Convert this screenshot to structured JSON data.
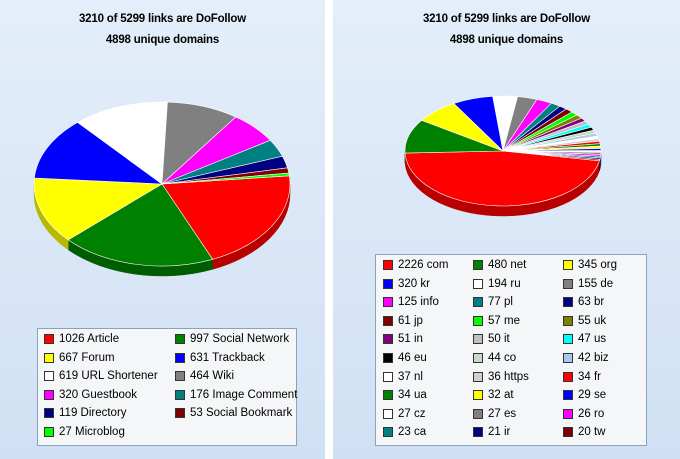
{
  "chart_data": [
    {
      "type": "pie",
      "title": "3210 of 5299 links are DoFollow",
      "subtitle": "4898 unique domains",
      "legend_position": "bottom",
      "slices": [
        {
          "label": "1026 Article",
          "value": 1026,
          "color": "#ff0000"
        },
        {
          "label": "997 Social Network",
          "value": 997,
          "color": "#008000"
        },
        {
          "label": "667 Forum",
          "value": 667,
          "color": "#ffff00"
        },
        {
          "label": "631 Trackback",
          "value": 631,
          "color": "#0000ff"
        },
        {
          "label": "619 URL Shortener",
          "value": 619,
          "color": "#ffffff"
        },
        {
          "label": "464 Wiki",
          "value": 464,
          "color": "#808080"
        },
        {
          "label": "320 Guestbook",
          "value": 320,
          "color": "#ff00ff"
        },
        {
          "label": "176 Image Comment",
          "value": 176,
          "color": "#008080"
        },
        {
          "label": "119 Directory",
          "value": 119,
          "color": "#000080"
        },
        {
          "label": "53 Social Bookmark",
          "value": 53,
          "color": "#800000"
        },
        {
          "label": "27 Microblog",
          "value": 27,
          "color": "#00ff00"
        }
      ]
    },
    {
      "type": "pie",
      "title": "3210 of 5299 links are DoFollow",
      "subtitle": "4898 unique domains",
      "legend_position": "bottom",
      "slices": [
        {
          "label": "2226 com",
          "value": 2226,
          "color": "#ff0000"
        },
        {
          "label": "480 net",
          "value": 480,
          "color": "#008000"
        },
        {
          "label": "345 org",
          "value": 345,
          "color": "#ffff00"
        },
        {
          "label": "320 kr",
          "value": 320,
          "color": "#0000ff"
        },
        {
          "label": "194 ru",
          "value": 194,
          "color": "#ffffff"
        },
        {
          "label": "155 de",
          "value": 155,
          "color": "#808080"
        },
        {
          "label": "125 info",
          "value": 125,
          "color": "#ff00ff"
        },
        {
          "label": "77 pl",
          "value": 77,
          "color": "#008080"
        },
        {
          "label": "63 br",
          "value": 63,
          "color": "#000080"
        },
        {
          "label": "61 jp",
          "value": 61,
          "color": "#800000"
        },
        {
          "label": "57 me",
          "value": 57,
          "color": "#00ff00"
        },
        {
          "label": "55 uk",
          "value": 55,
          "color": "#808000"
        },
        {
          "label": "51 in",
          "value": 51,
          "color": "#800080"
        },
        {
          "label": "50 it",
          "value": 50,
          "color": "#c0c0c0"
        },
        {
          "label": "47 us",
          "value": 47,
          "color": "#00ffff"
        },
        {
          "label": "46 eu",
          "value": 46,
          "color": "#000000"
        },
        {
          "label": "44 co",
          "value": 44,
          "color": "#c8d8c8"
        },
        {
          "label": "42 biz",
          "value": 42,
          "color": "#a8c8f0"
        },
        {
          "label": "37 nl",
          "value": 37,
          "color": "#ffffff"
        },
        {
          "label": "36 https",
          "value": 36,
          "color": "#d0d0d0"
        },
        {
          "label": "34 fr",
          "value": 34,
          "color": "#ff0000"
        },
        {
          "label": "34 ua",
          "value": 34,
          "color": "#008000"
        },
        {
          "label": "32 at",
          "value": 32,
          "color": "#ffff00"
        },
        {
          "label": "29 se",
          "value": 29,
          "color": "#0000ff"
        },
        {
          "label": "27 cz",
          "value": 27,
          "color": "#ffffff"
        },
        {
          "label": "27 es",
          "value": 27,
          "color": "#808080"
        },
        {
          "label": "26 ro",
          "value": 26,
          "color": "#ff00ff"
        },
        {
          "label": "23 ca",
          "value": 23,
          "color": "#008080"
        },
        {
          "label": "21 ir",
          "value": 21,
          "color": "#000080"
        },
        {
          "label": "20 tw",
          "value": 20,
          "color": "#800000"
        }
      ]
    }
  ]
}
